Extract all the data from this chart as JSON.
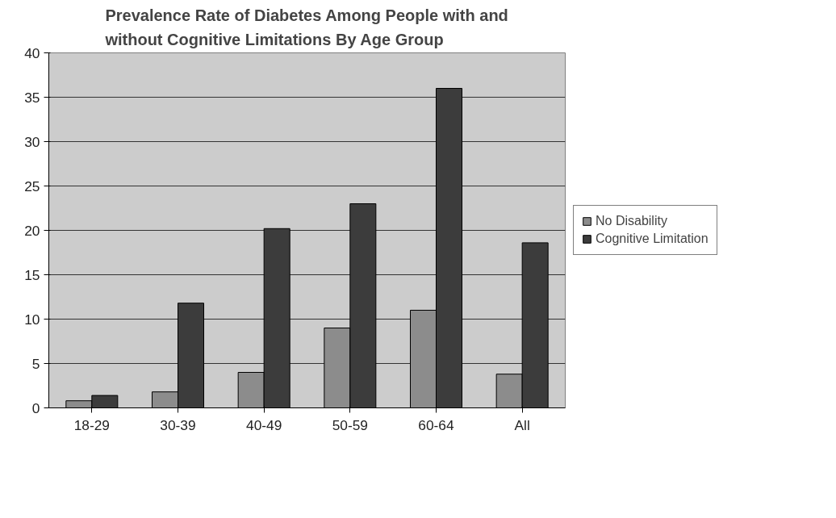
{
  "chart_data": {
    "type": "bar",
    "title": "Prevalence Rate of Diabetes Among People with and\nwithout Cognitive Limitations By Age Group",
    "categories": [
      "18-29",
      "30-39",
      "40-49",
      "50-59",
      "60-64",
      "All"
    ],
    "series": [
      {
        "name": "No Disability",
        "color": "#8c8c8c",
        "values": [
          0.8,
          1.8,
          4,
          9,
          11,
          3.8
        ]
      },
      {
        "name": "Cognitive Limitation",
        "color": "#3c3c3c",
        "values": [
          1.4,
          11.8,
          20.2,
          23,
          36,
          18.6
        ]
      }
    ],
    "ylim": [
      0,
      40
    ],
    "yticks": [
      0,
      5,
      10,
      15,
      20,
      25,
      30,
      35,
      40
    ],
    "grid": "y",
    "legend": "right"
  }
}
